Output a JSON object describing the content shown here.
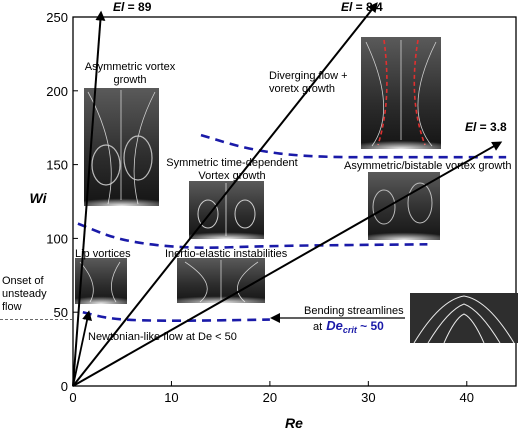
{
  "chart_data": {
    "type": "scatter",
    "title": "",
    "xlabel": "Re",
    "ylabel": "Wi",
    "xlim": [
      0,
      45
    ],
    "ylim": [
      0,
      250
    ],
    "x_ticks": [
      "0",
      "10",
      "20",
      "30",
      "40"
    ],
    "y_ticks": [
      "0",
      "50",
      "100",
      "150",
      "200",
      "250"
    ],
    "grid": false,
    "elasticity_lines": [
      {
        "label_prefix": "El",
        "label_value": "89",
        "slope": 89
      },
      {
        "label_prefix": "El",
        "label_value": "8.4",
        "slope": 8.4
      },
      {
        "label_prefix": "El",
        "label_value": "3.8",
        "slope": 3.8
      }
    ],
    "boundaries": [
      {
        "points": [
          [
            1,
            50
          ],
          [
            4,
            45
          ],
          [
            10,
            44
          ],
          [
            20,
            45
          ]
        ]
      },
      {
        "points": [
          [
            0.5,
            110
          ],
          [
            5,
            98
          ],
          [
            12,
            93
          ],
          [
            20,
            95
          ],
          [
            36,
            96
          ]
        ]
      },
      {
        "points": [
          [
            13,
            170
          ],
          [
            18,
            160
          ],
          [
            24,
            155
          ],
          [
            35,
            155
          ],
          [
            44,
            155
          ]
        ]
      }
    ],
    "onset": {
      "wi": 45,
      "label_lines": [
        "Onset of",
        "unsteady",
        "flow"
      ]
    },
    "annotations": {
      "asym_vortex": [
        "Asymmetric vortex",
        "growth"
      ],
      "diverging": [
        "Diverging flow +",
        "voretx growth"
      ],
      "symmetric": [
        "Symmetric time-dependent",
        "Vortex growth"
      ],
      "asym_bistable": "Asymmetric/bistable vortex growth",
      "lip": "Lip vortices",
      "inertio": "Inertio-elastic instabilities",
      "newtonian": "Newtonian-like flow at De < 50",
      "bending_1": "Bending streamlines",
      "bending_2_prefix": "at",
      "bending_2_symbol": "De",
      "bending_2_sub": "crit",
      "bending_2_suffix": " ~ 50"
    },
    "colors": {
      "boundary": "#1a1aa8",
      "axis": "#000000",
      "guide": "#555555"
    }
  }
}
